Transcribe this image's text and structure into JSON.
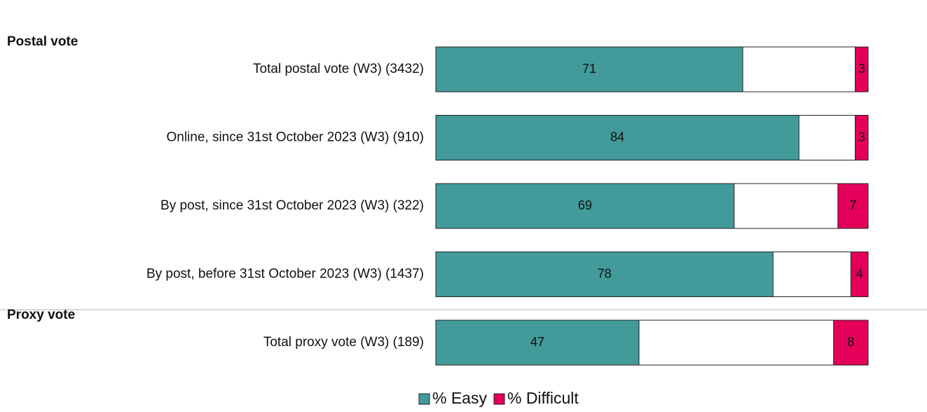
{
  "chart_data": {
    "type": "stacked_bar_horizontal",
    "groups": [
      {
        "name": "Postal vote",
        "categories": [
          "Total postal vote (W3) (3432)",
          "Online, since 31st October 2023 (W3) (910)",
          "By post, since 31st October 2023 (W3) (322)",
          "By post, before 31st October 2023 (W3) (1437)"
        ]
      },
      {
        "name": "Proxy vote",
        "categories": [
          "Total proxy vote (W3) (189)"
        ]
      }
    ],
    "series": [
      {
        "name": "% Easy",
        "color": "#429a9a",
        "values": [
          71,
          84,
          69,
          78,
          47
        ]
      },
      {
        "name": "% Difficult",
        "color": "#e4005a",
        "values": [
          3,
          3,
          7,
          4,
          8
        ]
      }
    ],
    "xlim": [
      0,
      100
    ],
    "legend": "bottom"
  }
}
